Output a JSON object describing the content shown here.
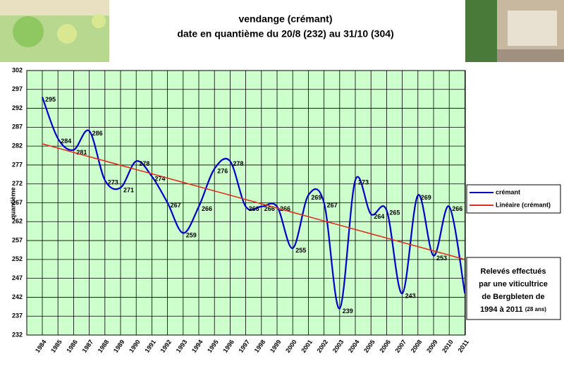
{
  "chart_data": {
    "type": "line",
    "title": "vendange  (crémant)",
    "subtitle": "date en quantième du 20/8 (232) au 31/10 (304)",
    "y_label": "quantième",
    "categories": [
      "1984",
      "1985",
      "1986",
      "1987",
      "1988",
      "1989",
      "1990",
      "1991",
      "1992",
      "1993",
      "1994",
      "1995",
      "1996",
      "1997",
      "1998",
      "1999",
      "2000",
      "2001",
      "2002",
      "2003",
      "2004",
      "2005",
      "2006",
      "2007",
      "2008",
      "2009",
      "2010",
      "2011"
    ],
    "series": [
      {
        "name": "crémant",
        "color": "#0000cc",
        "values": [
          295,
          284,
          281,
          286,
          273,
          271,
          278,
          274,
          267,
          259,
          266,
          276,
          278,
          266,
          266,
          266,
          255,
          269,
          267,
          239,
          273,
          264,
          265,
          243,
          269,
          253,
          266,
          243
        ],
        "value_labels": [
          "295",
          "284",
          "281",
          "286",
          "273",
          "271",
          "278",
          "274",
          "267",
          "259",
          "266",
          "276",
          "278",
          "266",
          "266",
          "266",
          "255",
          "269",
          "267",
          "239",
          "273",
          "264",
          "265",
          "243",
          "269",
          "253",
          "266",
          null
        ]
      },
      {
        "name": "Linéaire (crémant)",
        "color": "#e03020",
        "values": [
          282.6,
          281.47,
          280.33,
          279.2,
          278.07,
          276.93,
          275.8,
          274.67,
          273.53,
          272.4,
          271.27,
          270.13,
          269.0,
          267.87,
          266.73,
          265.6,
          264.47,
          263.33,
          262.2,
          261.07,
          259.93,
          258.8,
          257.67,
          256.53,
          255.4,
          254.27,
          253.13,
          252.0
        ]
      }
    ],
    "ylim": [
      232,
      302
    ],
    "yticks": [
      232,
      237,
      242,
      247,
      252,
      257,
      262,
      267,
      272,
      277,
      282,
      287,
      292,
      297,
      302
    ],
    "grid": true,
    "plot_background": "#ccffcc",
    "annotation": {
      "lines": [
        "Relevés effectués",
        "par une viticultrice",
        "de Bergbleten de",
        "1994 à 2011"
      ],
      "small": "(28 ans)"
    }
  }
}
